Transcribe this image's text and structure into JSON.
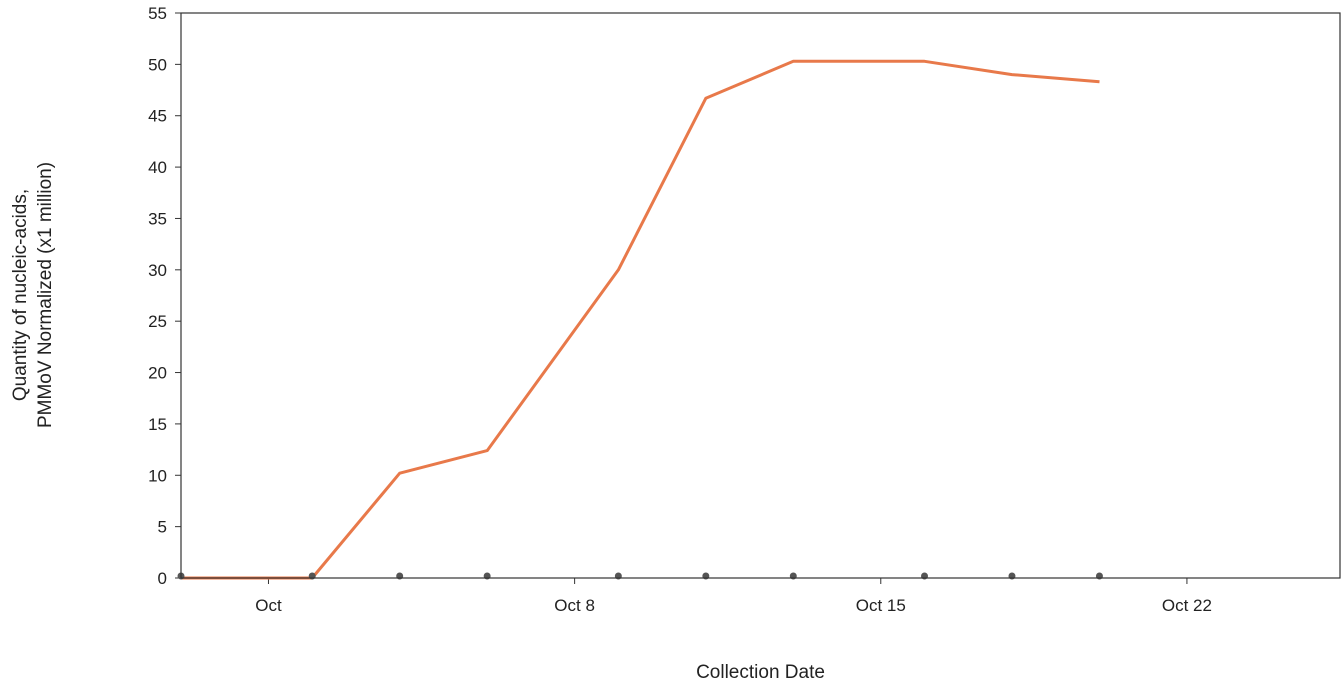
{
  "chart_data": {
    "type": "line",
    "title": "",
    "xlabel": "Collection Date",
    "ylabel_lines": [
      "Quantity of nucleic-acids,",
      "PMMoV Normalized (x1 million)"
    ],
    "x_tick_labels": [
      "Oct",
      "Oct 8",
      "Oct 15",
      "Oct 22"
    ],
    "y_tick_labels": [
      "0",
      "5",
      "10",
      "15",
      "20",
      "25",
      "30",
      "35",
      "40",
      "45",
      "50",
      "55"
    ],
    "ylim": [
      0,
      55
    ],
    "grid": false,
    "colors": {
      "line": "#e8794a",
      "sample_dot": "#555555",
      "frame": "#333333"
    },
    "series": [
      {
        "points": [
          {
            "x": "2023-09-29",
            "y": 0
          },
          {
            "x": "2023-10-02",
            "y": 0
          },
          {
            "x": "2023-10-04",
            "y": 10.2
          },
          {
            "x": "2023-10-06",
            "y": 12.4
          },
          {
            "x": "2023-10-09",
            "y": 30
          },
          {
            "x": "2023-10-11",
            "y": 46.7
          },
          {
            "x": "2023-10-13",
            "y": 50.3
          },
          {
            "x": "2023-10-16",
            "y": 50.3
          },
          {
            "x": "2023-10-18",
            "y": 49
          },
          {
            "x": "2023-10-20",
            "y": 48.3
          }
        ]
      }
    ],
    "sample_dates": [
      "2023-09-29",
      "2023-10-02",
      "2023-10-04",
      "2023-10-06",
      "2023-10-09",
      "2023-10-11",
      "2023-10-13",
      "2023-10-16",
      "2023-10-18",
      "2023-10-20"
    ]
  }
}
